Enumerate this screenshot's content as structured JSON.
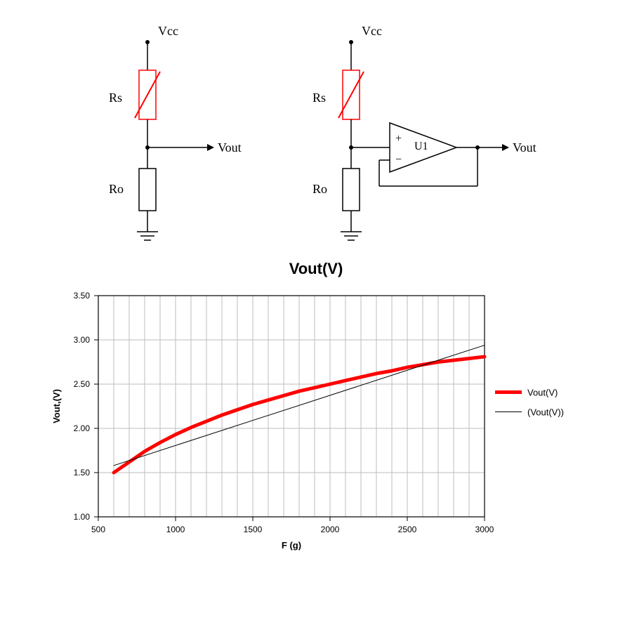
{
  "circuit": {
    "vcc": "Vcc",
    "rs": "Rs",
    "ro": "Ro",
    "vout": "Vout",
    "u1": "U1",
    "line_color": "#000000",
    "sensor_color": "#ff0000",
    "font_family": "serif",
    "label_fontsize": 18
  },
  "chart_title": "Vout(V)",
  "chart": {
    "type": "line",
    "xlabel": "F (g)",
    "ylabel": "Vout,(V)",
    "label_fontsize": 13,
    "tick_fontsize": 12,
    "xlim": [
      500,
      3000
    ],
    "ylim": [
      1.0,
      3.5
    ],
    "xtick_step": 500,
    "ytick_step": 0.5,
    "xticks": [
      "500",
      "1000",
      "1500",
      "2000",
      "2500",
      "3000"
    ],
    "yticks": [
      "1.00",
      "1.50",
      "2.00",
      "2.50",
      "3.00",
      "3.50"
    ],
    "grid_color": "#bdbdbd",
    "grid_minor_x": 5,
    "background_color": "#ffffff",
    "border_color": "#000000",
    "series": [
      {
        "name": "Vout(V)",
        "color": "#ff0000",
        "line_width": 5,
        "data": [
          [
            600,
            1.5
          ],
          [
            700,
            1.62
          ],
          [
            800,
            1.74
          ],
          [
            900,
            1.84
          ],
          [
            1000,
            1.93
          ],
          [
            1100,
            2.01
          ],
          [
            1200,
            2.08
          ],
          [
            1300,
            2.15
          ],
          [
            1400,
            2.21
          ],
          [
            1500,
            2.27
          ],
          [
            1600,
            2.32
          ],
          [
            1700,
            2.37
          ],
          [
            1800,
            2.42
          ],
          [
            1900,
            2.46
          ],
          [
            2000,
            2.5
          ],
          [
            2100,
            2.54
          ],
          [
            2200,
            2.58
          ],
          [
            2300,
            2.62
          ],
          [
            2400,
            2.65
          ],
          [
            2500,
            2.69
          ],
          [
            2600,
            2.72
          ],
          [
            2700,
            2.75
          ],
          [
            2800,
            2.77
          ],
          [
            2900,
            2.79
          ],
          [
            3000,
            2.81
          ]
        ]
      },
      {
        "name": "(Vout(V))",
        "color": "#000000",
        "line_width": 1,
        "data": [
          [
            600,
            1.58
          ],
          [
            3000,
            2.94
          ]
        ]
      }
    ],
    "legend": {
      "position": "right",
      "items": [
        {
          "label": "Vout(V)",
          "color": "#ff0000",
          "width": 5
        },
        {
          "label": "(Vout(V))",
          "color": "#000000",
          "width": 1
        }
      ]
    }
  }
}
